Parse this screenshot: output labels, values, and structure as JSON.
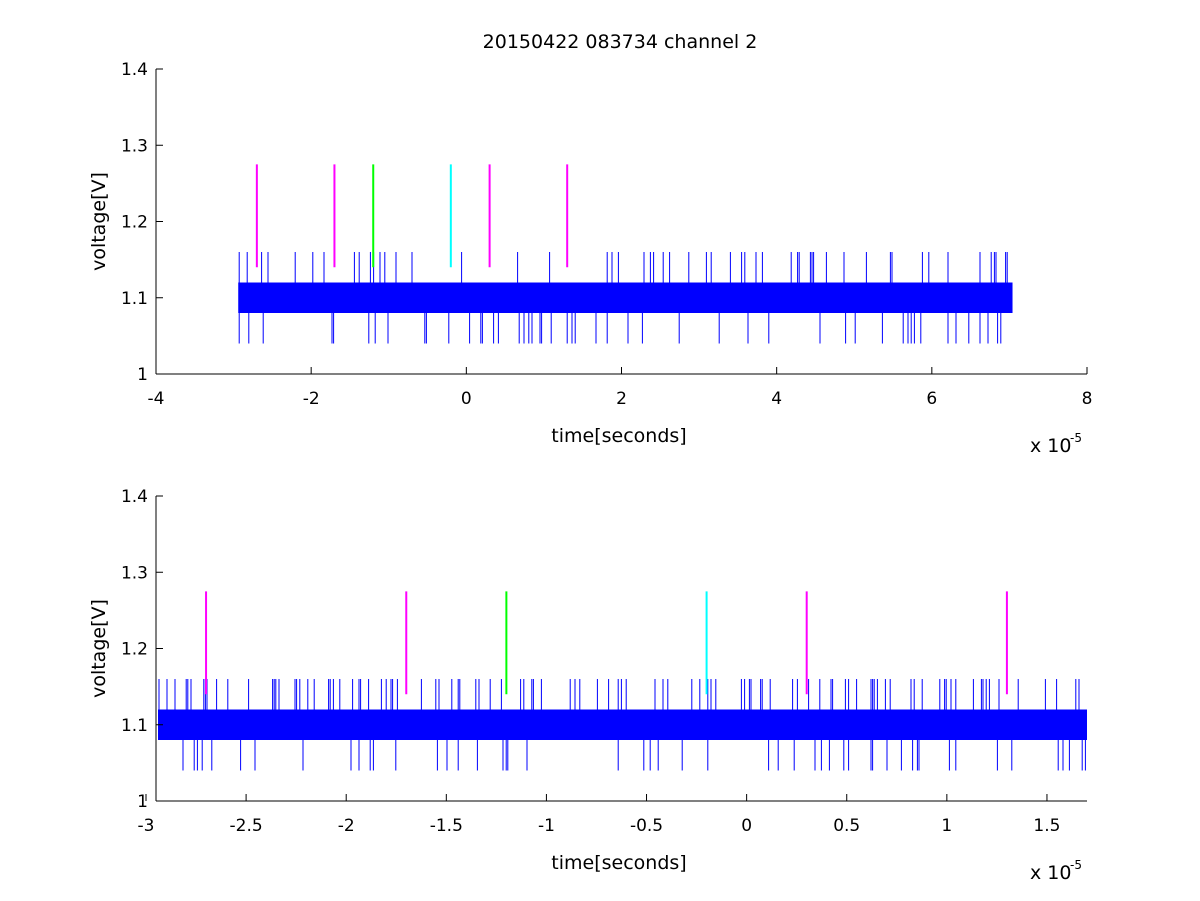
{
  "figure_title": "20150422 083734 channel 2",
  "colors": {
    "trace": "#0000ff",
    "magenta": "#ff00ff",
    "green": "#00ff00",
    "cyan": "#00ffff"
  },
  "chart_data": [
    {
      "type": "line",
      "title": "20150422 083734 channel 2",
      "xlabel": "time[seconds]",
      "ylabel": "voltage[V]",
      "x_multiplier": "x 10",
      "x_exponent": "-5",
      "xlim": [
        -4e-05,
        8e-05
      ],
      "ylim": [
        1.0,
        1.4
      ],
      "xticks": [
        -4e-05,
        -2e-05,
        0,
        2e-05,
        4e-05,
        6e-05,
        8e-05
      ],
      "xtick_labels": [
        "-4",
        "-2",
        "0",
        "2",
        "4",
        "6",
        "8"
      ],
      "yticks": [
        1.0,
        1.1,
        1.2,
        1.3,
        1.4
      ],
      "ytick_labels": [
        "1",
        "1.1",
        "1.2",
        "1.3",
        "1.4"
      ],
      "grid": false,
      "series": [
        {
          "color": "trace",
          "x_start": -2.94e-05,
          "x_end": 7.04e-05,
          "band_low": 1.08,
          "band_high": 1.12,
          "spike_high": 1.16,
          "spike_low": 1.04
        }
      ],
      "markers": [
        {
          "x": -2.7e-05,
          "y_low": 1.14,
          "y_high": 1.275,
          "color": "magenta"
        },
        {
          "x": -1.7e-05,
          "y_low": 1.14,
          "y_high": 1.275,
          "color": "magenta"
        },
        {
          "x": -1.2e-05,
          "y_low": 1.14,
          "y_high": 1.275,
          "color": "green"
        },
        {
          "x": -2e-06,
          "y_low": 1.14,
          "y_high": 1.275,
          "color": "cyan"
        },
        {
          "x": 3e-06,
          "y_low": 1.14,
          "y_high": 1.275,
          "color": "magenta"
        },
        {
          "x": 1.3e-05,
          "y_low": 1.14,
          "y_high": 1.275,
          "color": "magenta"
        }
      ]
    },
    {
      "type": "line",
      "title": "",
      "xlabel": "time[seconds]",
      "ylabel": "voltage[V]",
      "x_multiplier": "x 10",
      "x_exponent": "-5",
      "xlim": [
        -2.95e-05,
        1.7e-05
      ],
      "ylim": [
        1.0,
        1.4
      ],
      "xticks": [
        -3e-05,
        -2.5e-05,
        -2e-05,
        -1.5e-05,
        -1e-05,
        -5e-06,
        0,
        5e-06,
        1e-05,
        1.5e-05
      ],
      "xtick_labels": [
        "-3",
        "-2.5",
        "-2",
        "-1.5",
        "-1",
        "-0.5",
        "0",
        "0.5",
        "1",
        "1.5"
      ],
      "yticks": [
        1.0,
        1.1,
        1.2,
        1.3,
        1.4
      ],
      "ytick_labels": [
        "1",
        "1.1",
        "1.2",
        "1.3",
        "1.4"
      ],
      "grid": false,
      "series": [
        {
          "color": "trace",
          "x_start": -2.94e-05,
          "x_end": 1.7e-05,
          "band_low": 1.08,
          "band_high": 1.12,
          "spike_high": 1.16,
          "spike_low": 1.04
        }
      ],
      "markers": [
        {
          "x": -2.7e-05,
          "y_low": 1.14,
          "y_high": 1.275,
          "color": "magenta"
        },
        {
          "x": -1.7e-05,
          "y_low": 1.14,
          "y_high": 1.275,
          "color": "magenta"
        },
        {
          "x": -1.2e-05,
          "y_low": 1.14,
          "y_high": 1.275,
          "color": "green"
        },
        {
          "x": -2e-06,
          "y_low": 1.14,
          "y_high": 1.275,
          "color": "cyan"
        },
        {
          "x": 3e-06,
          "y_low": 1.14,
          "y_high": 1.275,
          "color": "magenta"
        },
        {
          "x": 1.3e-05,
          "y_low": 1.14,
          "y_high": 1.275,
          "color": "magenta"
        }
      ]
    }
  ]
}
